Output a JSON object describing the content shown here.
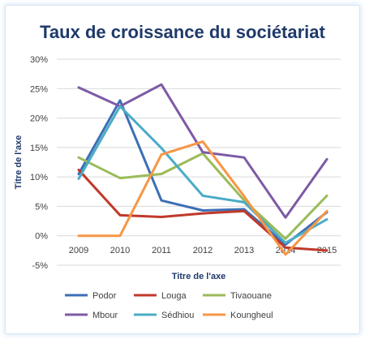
{
  "chart_data": {
    "type": "line",
    "title": "Taux de croissance du sociétariat",
    "xlabel": "Titre de l'axe",
    "ylabel": "Titre de l'axe",
    "x": [
      "2009",
      "2010",
      "2011",
      "2012",
      "2013",
      "2014",
      "2015"
    ],
    "ylim": [
      -5,
      30
    ],
    "yticks": [
      "-5%",
      "0%",
      "5%",
      "10%",
      "15%",
      "20%",
      "25%",
      "30%"
    ],
    "grid": true,
    "legend_position": "bottom",
    "series": [
      {
        "name": "Podor",
        "color": "#3c6fb5",
        "values": [
          10.5,
          23,
          6,
          4.3,
          4.5,
          -1.5,
          4
        ]
      },
      {
        "name": "Louga",
        "color": "#c0392b",
        "values": [
          11.2,
          3.5,
          3.2,
          3.8,
          4.2,
          -2,
          -2.5
        ]
      },
      {
        "name": "Tivaouane",
        "color": "#9bbb59",
        "values": [
          13.3,
          9.8,
          10.5,
          14,
          6,
          -0.5,
          6.8
        ]
      },
      {
        "name": "Mbour",
        "color": "#7d5aa6",
        "values": [
          25.2,
          22,
          25.7,
          14.2,
          13.3,
          3.1,
          13
        ]
      },
      {
        "name": "Sédhiou",
        "color": "#4bacc6",
        "values": [
          9.7,
          22,
          14.9,
          6.8,
          5.7,
          -1.2,
          2.8
        ]
      },
      {
        "name": "Koungheul",
        "color": "#f79646",
        "values": [
          0,
          0,
          13.8,
          16,
          6.7,
          -3.2,
          4.2
        ]
      }
    ]
  }
}
